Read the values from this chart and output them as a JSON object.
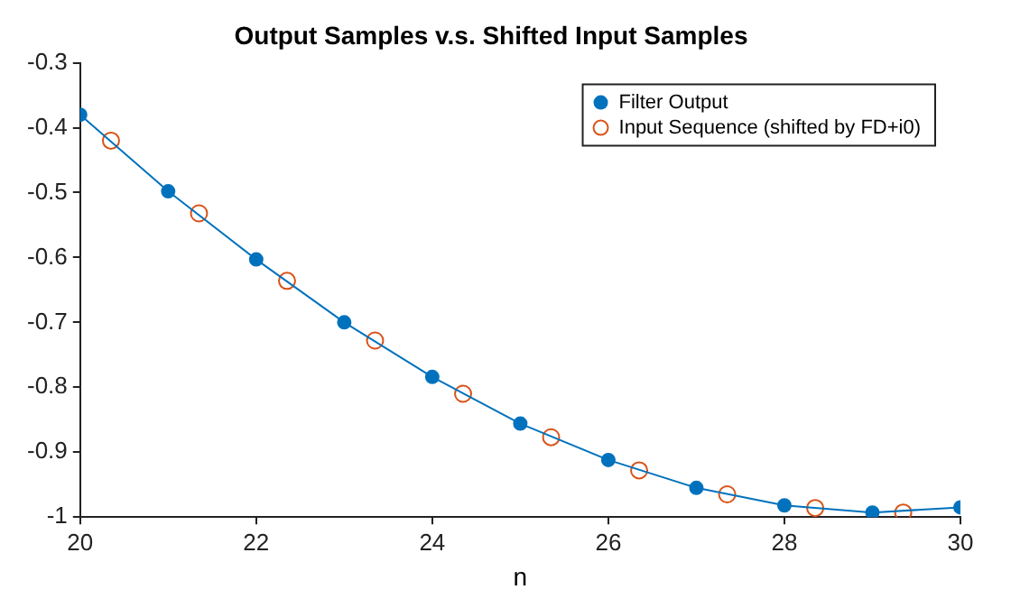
{
  "chart_data": {
    "type": "line",
    "title": "Output Samples v.s. Shifted Input Samples",
    "xlabel": "n",
    "xlim": [
      20,
      30
    ],
    "xticks": [
      20,
      22,
      24,
      26,
      28,
      30
    ],
    "ylim": [
      -1,
      -0.3
    ],
    "yticks": [
      -1,
      -0.9,
      -0.8,
      -0.7,
      -0.6,
      -0.5,
      -0.4,
      -0.3
    ],
    "grid": false,
    "legend": "top right",
    "marker": "circle",
    "series": [
      {
        "name": "Filter Output",
        "type": "line",
        "color": "#0072bd",
        "line_style": "solid",
        "x": [
          20,
          21,
          22,
          23,
          24,
          25,
          26,
          27,
          28,
          29,
          30
        ],
        "values": [
          -0.38,
          -0.498,
          -0.603,
          -0.7,
          -0.784,
          -0.856,
          -0.912,
          -0.955,
          -0.982,
          -0.993,
          -0.985
        ]
      },
      {
        "name": "Input Sequence (shifted by FD+i0)",
        "type": "scatter",
        "color": "#d95319",
        "x": [
          20.35,
          21.35,
          22.35,
          23.35,
          24.35,
          25.35,
          26.35,
          27.35,
          28.35,
          29.35
        ],
        "values": [
          -0.42,
          -0.532,
          -0.636,
          -0.728,
          -0.81,
          -0.877,
          -0.928,
          -0.965,
          -0.986,
          -0.993
        ]
      }
    ]
  }
}
